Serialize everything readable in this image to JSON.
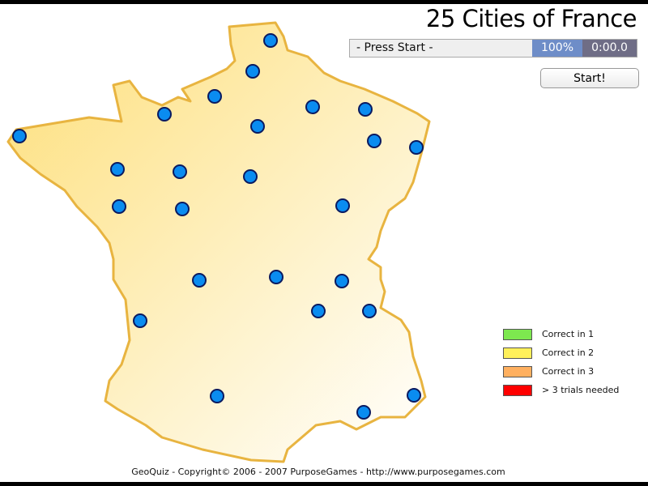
{
  "title": "25 Cities of France",
  "status": {
    "message": "- Press Start -",
    "percent": "100%",
    "timer": "0:00.0"
  },
  "start_button": "Start!",
  "legend": [
    {
      "label": "Correct in 1",
      "color": "#7de84f"
    },
    {
      "label": "Correct in 2",
      "color": "#fff05a"
    },
    {
      "label": "Correct in 3",
      "color": "#ffb060"
    },
    {
      "label": "> 3 trials needed",
      "color": "#ff0000"
    }
  ],
  "city_marker_color": "#0a8cf0",
  "city_count": 25,
  "map_colors": {
    "fill": "#fde68a",
    "outline": "#e8b440"
  },
  "footer": "GeoQuiz - Copyright© 2006 - 2007 PurposeGames - http://www.purposegames.com"
}
